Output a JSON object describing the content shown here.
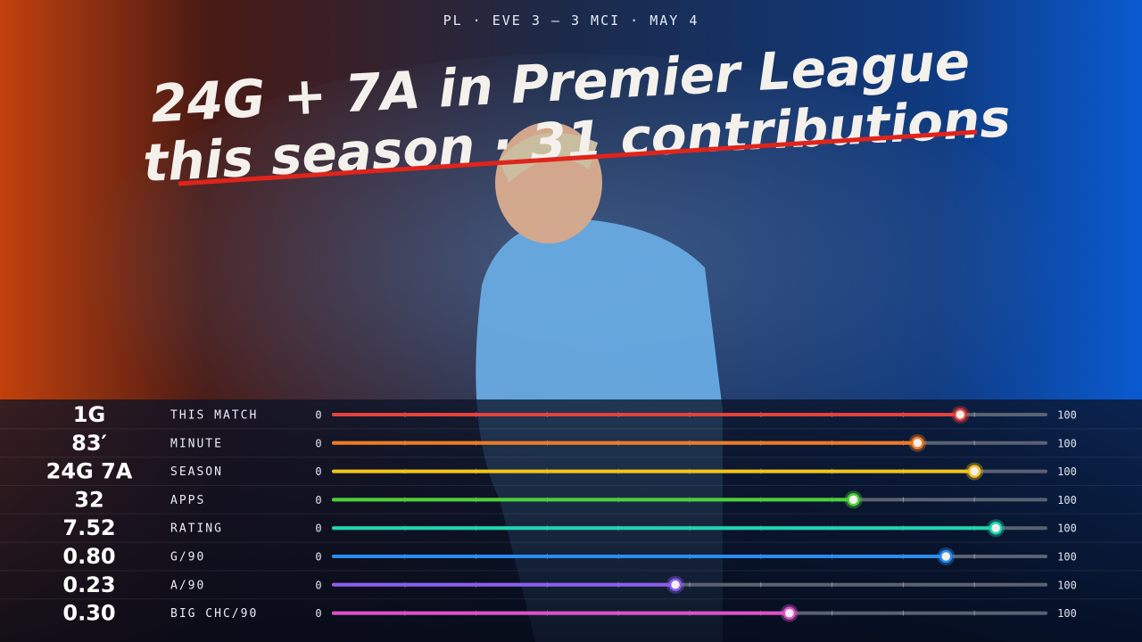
{
  "header": {
    "kicker": "PL · EVE 3 — 3 MCI · MAY 4",
    "title_lines": [
      "24G + 7A in Premier League",
      "this season · 31 contributions"
    ]
  },
  "rows": [
    {
      "value": "1G",
      "label": "THIS MATCH",
      "min": 0,
      "max": 100,
      "position": 88,
      "color": "#e8403a"
    },
    {
      "value": "83′",
      "label": "MINUTE",
      "min": 0,
      "max": 100,
      "position": 82,
      "color": "#f07a20"
    },
    {
      "value": "24G 7A",
      "label": "SEASON",
      "min": 0,
      "max": 100,
      "position": 90,
      "color": "#f2c21a"
    },
    {
      "value": "32",
      "label": "APPS",
      "min": 0,
      "max": 100,
      "position": 73,
      "color": "#4cd137"
    },
    {
      "value": "7.52",
      "label": "RATING",
      "min": 0,
      "max": 100,
      "position": 93,
      "color": "#1fd6b0"
    },
    {
      "value": "0.80",
      "label": "G/90",
      "min": 0,
      "max": 100,
      "position": 86,
      "color": "#2a8cf0"
    },
    {
      "value": "0.23",
      "label": "A/90",
      "min": 0,
      "max": 100,
      "position": 48,
      "color": "#8a5cf0"
    },
    {
      "value": "0.30",
      "label": "BIG CHC/90",
      "min": 0,
      "max": 100,
      "position": 64,
      "color": "#e050c8"
    }
  ]
}
